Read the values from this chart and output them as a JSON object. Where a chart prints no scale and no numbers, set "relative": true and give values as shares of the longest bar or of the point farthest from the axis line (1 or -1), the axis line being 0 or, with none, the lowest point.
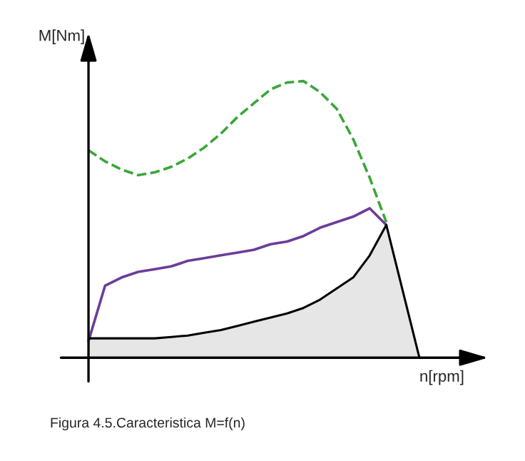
{
  "chart_data": {
    "type": "line",
    "relative": true,
    "xlabel": "n[rpm]",
    "ylabel": "M[Nm]",
    "annotations": [
      "Figura 4.5.Caracteristica M=f(n)"
    ],
    "marker": "none",
    "categories": [
      null,
      null,
      null,
      null,
      null,
      null,
      null,
      null,
      null,
      null,
      null,
      null,
      null,
      null,
      null,
      null,
      null,
      null,
      null,
      null,
      null
    ],
    "series": [
      {
        "line_style": "dashed",
        "color": "#3aa63a",
        "values": [
          0.75,
          0.71,
          0.68,
          0.66,
          0.67,
          0.69,
          0.72,
          0.76,
          0.81,
          0.87,
          0.92,
          0.97,
          0.995,
          1.0,
          0.96,
          0.9,
          0.79,
          0.65,
          0.49,
          null,
          null
        ]
      },
      {
        "line_style": "solid",
        "color": "#6a3d9a",
        "values": [
          0.06,
          0.26,
          0.29,
          0.31,
          0.32,
          0.33,
          0.35,
          0.36,
          0.37,
          0.38,
          0.39,
          0.41,
          0.42,
          0.44,
          0.47,
          0.49,
          0.51,
          0.54,
          0.48,
          null,
          null
        ]
      },
      {
        "type": "area",
        "line_style": "solid",
        "color": "#e6e6e6",
        "values": [
          0.07,
          0.07,
          0.07,
          0.07,
          0.07,
          0.075,
          0.08,
          0.09,
          0.1,
          0.115,
          0.13,
          0.145,
          0.16,
          0.18,
          0.21,
          0.25,
          0.29,
          0.37,
          0.48,
          0.24,
          0
        ]
      }
    ]
  }
}
